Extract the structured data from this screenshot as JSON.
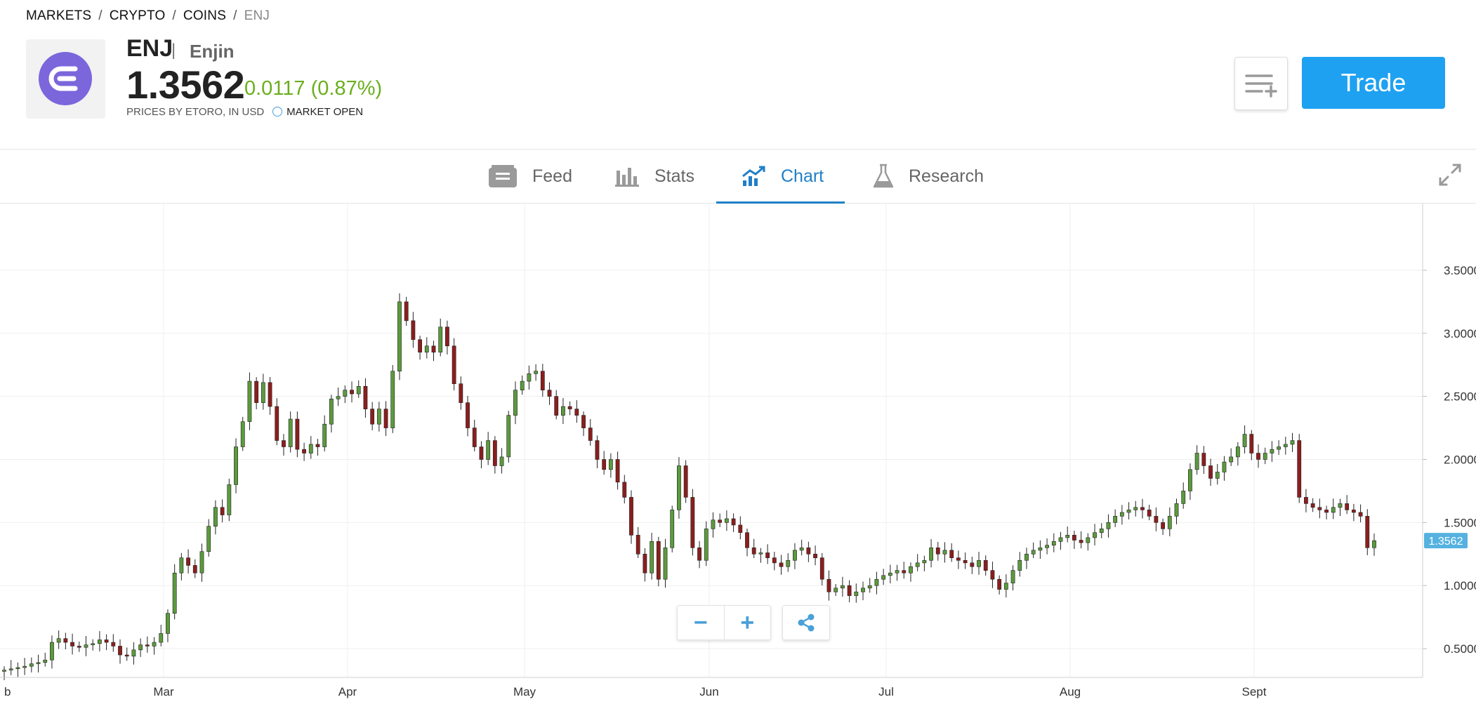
{
  "breadcrumb": {
    "items": [
      "MARKETS",
      "CRYPTO",
      "COINS"
    ],
    "current": "ENJ",
    "separator": "/"
  },
  "asset": {
    "symbol": "ENJ",
    "name": "Enjin",
    "price": "1.3562",
    "change": "0.0117 (0.87%)",
    "source": "PRICES BY ETORO, IN USD",
    "market_status": "MARKET OPEN",
    "colors": {
      "logo": "#7b66dc",
      "change": "#6aaf1e"
    }
  },
  "header": {
    "trade_label": "Trade",
    "watchlist_icon": "add-to-watchlist-icon"
  },
  "tabs": [
    {
      "label": "Feed",
      "icon": "feed-icon"
    },
    {
      "label": "Stats",
      "icon": "stats-icon"
    },
    {
      "label": "Chart",
      "icon": "chart-icon",
      "active": true
    },
    {
      "label": "Research",
      "icon": "flask-icon"
    }
  ],
  "controls": {
    "zoom_out": "−",
    "zoom_in": "+",
    "share_icon": "share-icon",
    "expand_icon": "expand-icon"
  },
  "chart_data": {
    "type": "candlestick",
    "ylim": [
      0.2,
      3.95
    ],
    "y_ticks": [
      "0.5000",
      "1.0000",
      "1.5000",
      "2.0000",
      "2.5000",
      "3.0000",
      "3.5000"
    ],
    "x_ticks": [
      "b",
      "Mar",
      "Apr",
      "May",
      "Jun",
      "Jul",
      "Aug",
      "Sept"
    ],
    "current_price_label": "1.3562",
    "up_color": "#5b9a3c",
    "down_color": "#8b1e1e",
    "grid": true,
    "y_axis_side": "right",
    "closes": [
      0.33,
      0.34,
      0.35,
      0.36,
      0.38,
      0.39,
      0.41,
      0.55,
      0.58,
      0.55,
      0.52,
      0.51,
      0.53,
      0.54,
      0.57,
      0.55,
      0.52,
      0.45,
      0.44,
      0.49,
      0.53,
      0.52,
      0.55,
      0.62,
      0.78,
      1.1,
      1.22,
      1.16,
      1.1,
      1.27,
      1.47,
      1.62,
      1.56,
      1.8,
      2.1,
      2.3,
      2.62,
      2.45,
      2.61,
      2.42,
      2.15,
      2.1,
      2.32,
      2.08,
      2.05,
      2.12,
      2.1,
      2.28,
      2.48,
      2.5,
      2.55,
      2.52,
      2.58,
      2.4,
      2.28,
      2.4,
      2.25,
      2.7,
      3.25,
      3.1,
      2.95,
      2.85,
      2.9,
      2.85,
      3.05,
      2.9,
      2.6,
      2.45,
      2.25,
      2.1,
      2.0,
      2.15,
      1.95,
      2.02,
      2.35,
      2.55,
      2.62,
      2.68,
      2.7,
      2.55,
      2.5,
      2.35,
      2.42,
      2.4,
      2.35,
      2.25,
      2.15,
      2.0,
      1.92,
      2.0,
      1.82,
      1.7,
      1.4,
      1.25,
      1.1,
      1.35,
      1.05,
      1.3,
      1.6,
      1.95,
      1.7,
      1.3,
      1.2,
      1.45,
      1.52,
      1.5,
      1.53,
      1.48,
      1.42,
      1.3,
      1.25,
      1.26,
      1.22,
      1.18,
      1.15,
      1.2,
      1.28,
      1.3,
      1.25,
      1.22,
      1.05,
      0.95,
      0.98,
      1.0,
      0.92,
      0.95,
      0.98,
      1.0,
      1.05,
      1.08,
      1.1,
      1.12,
      1.1,
      1.15,
      1.18,
      1.2,
      1.3,
      1.25,
      1.28,
      1.22,
      1.2,
      1.18,
      1.15,
      1.2,
      1.12,
      1.05,
      0.97,
      1.02,
      1.12,
      1.2,
      1.25,
      1.28,
      1.3,
      1.32,
      1.35,
      1.38,
      1.4,
      1.36,
      1.34,
      1.38,
      1.42,
      1.45,
      1.5,
      1.55,
      1.58,
      1.6,
      1.62,
      1.6,
      1.55,
      1.5,
      1.45,
      1.55,
      1.65,
      1.75,
      1.92,
      2.05,
      1.95,
      1.85,
      1.9,
      1.98,
      2.02,
      2.1,
      2.2,
      2.05,
      2.0,
      2.05,
      2.08,
      2.1,
      2.12,
      2.15,
      1.7,
      1.65,
      1.62,
      1.6,
      1.58,
      1.62,
      1.65,
      1.6,
      1.58,
      1.55,
      1.3,
      1.3562
    ]
  }
}
